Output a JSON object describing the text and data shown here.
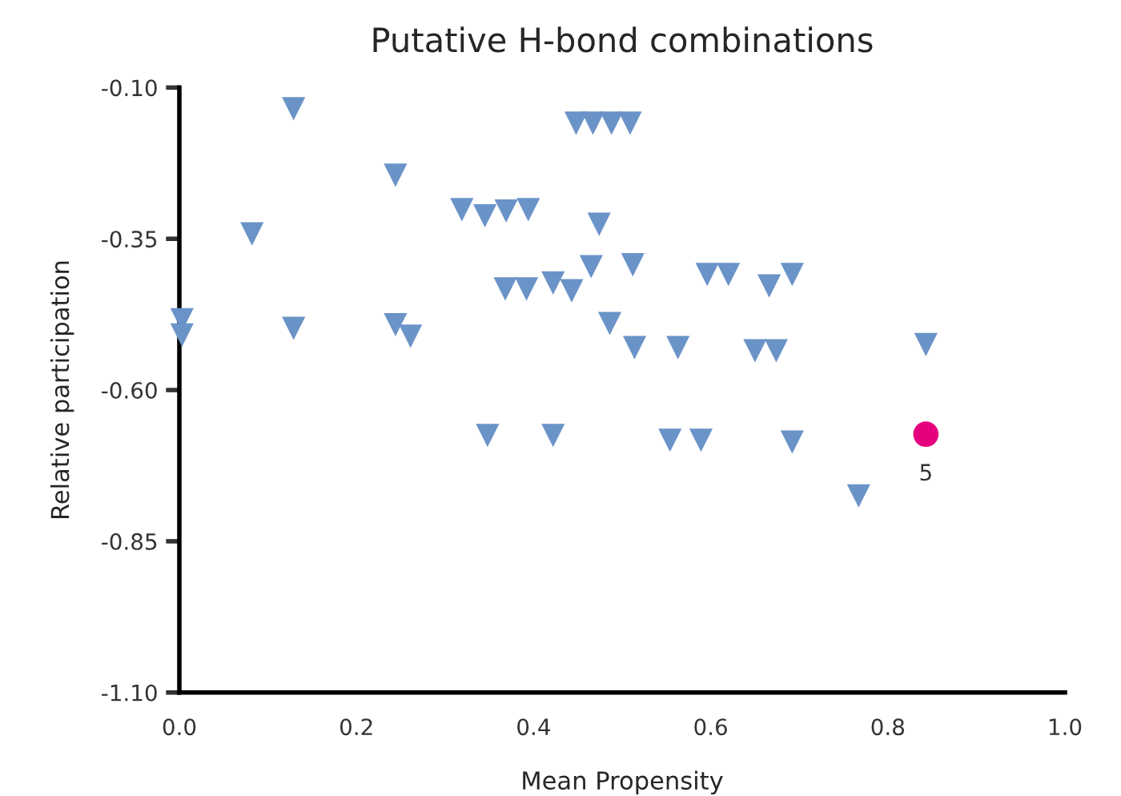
{
  "chart_data": {
    "type": "scatter",
    "title": "Putative H-bond combinations",
    "xlabel": "Mean Propensity",
    "ylabel": "Relative participation",
    "xlim": [
      0,
      1.0
    ],
    "ylim": [
      -1.1,
      -0.1
    ],
    "xticks": [
      {
        "value": 0,
        "label": "0.0"
      },
      0.2,
      0.4,
      0.6,
      0.8,
      {
        "value": 1.0,
        "label": "1.0"
      }
    ],
    "yticks": [
      {
        "value": -1.1,
        "label": "-1.10"
      },
      -0.85,
      {
        "value": -0.6,
        "label": "-0.60"
      },
      -0.35,
      {
        "value": -0.1,
        "label": "-0.10"
      }
    ],
    "grid": false,
    "legend": false,
    "series": [
      {
        "color": "#6a93c8",
        "marker": "triangle",
        "x": [
          0.003,
          0.003,
          0.082,
          0.129,
          0.129,
          0.244,
          0.244,
          0.261,
          0.319,
          0.345,
          0.369,
          0.394,
          0.348,
          0.422,
          0.368,
          0.392,
          0.422,
          0.443,
          0.465,
          0.474,
          0.486,
          0.512,
          0.514,
          0.563,
          0.448,
          0.467,
          0.488,
          0.509,
          0.596,
          0.62,
          0.666,
          0.692,
          0.65,
          0.674,
          0.554,
          0.589,
          0.692,
          0.843,
          0.767
        ],
        "values": [
          -0.484,
          -0.509,
          -0.342,
          -0.135,
          -0.498,
          -0.245,
          -0.492,
          -0.511,
          -0.302,
          -0.312,
          -0.304,
          -0.302,
          -0.675,
          -0.675,
          -0.433,
          -0.433,
          -0.423,
          -0.436,
          -0.396,
          -0.326,
          -0.49,
          -0.393,
          -0.53,
          -0.53,
          -0.159,
          -0.159,
          -0.159,
          -0.159,
          -0.409,
          -0.409,
          -0.428,
          -0.409,
          -0.535,
          -0.535,
          -0.683,
          -0.683,
          -0.686,
          -0.525,
          -0.775
        ]
      },
      {
        "color": "#e6007e",
        "marker": "circle",
        "x": [
          0.843
        ],
        "values": [
          -0.673
        ]
      }
    ],
    "annotations": [
      {
        "text": "5",
        "x": 0.843,
        "y": -0.673
      }
    ]
  }
}
